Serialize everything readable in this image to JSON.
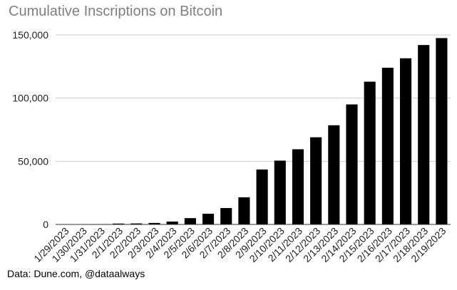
{
  "chart_data": {
    "type": "bar",
    "title": "Cumulative Inscriptions on Bitcoin",
    "xlabel": "",
    "ylabel": "",
    "categories": [
      "1/29/2023",
      "1/30/2023",
      "1/31/2023",
      "2/1/2023",
      "2/2/2023",
      "2/3/2023",
      "2/4/2023",
      "2/5/2023",
      "2/6/2023",
      "2/7/2023",
      "2/8/2023",
      "2/9/2023",
      "2/10/2023",
      "2/11/2023",
      "2/12/2023",
      "2/13/2023",
      "2/14/2023",
      "2/15/2023",
      "2/16/2023",
      "2/17/2023",
      "2/18/2023",
      "2/19/2023"
    ],
    "values": [
      100,
      150,
      300,
      700,
      800,
      1200,
      2300,
      5000,
      8500,
      13000,
      21500,
      43500,
      50500,
      59500,
      69000,
      78500,
      95000,
      113000,
      124000,
      131500,
      142000,
      147500
    ],
    "ylim": [
      0,
      150000
    ],
    "yticks": [
      0,
      50000,
      100000,
      150000
    ],
    "ytick_labels": [
      "0",
      "50,000",
      "100,000",
      "150,000"
    ],
    "grid": true,
    "bar_color": "#000000",
    "grid_color": "#cccccc"
  },
  "source_note": "Data: Dune.com, @dataalways"
}
